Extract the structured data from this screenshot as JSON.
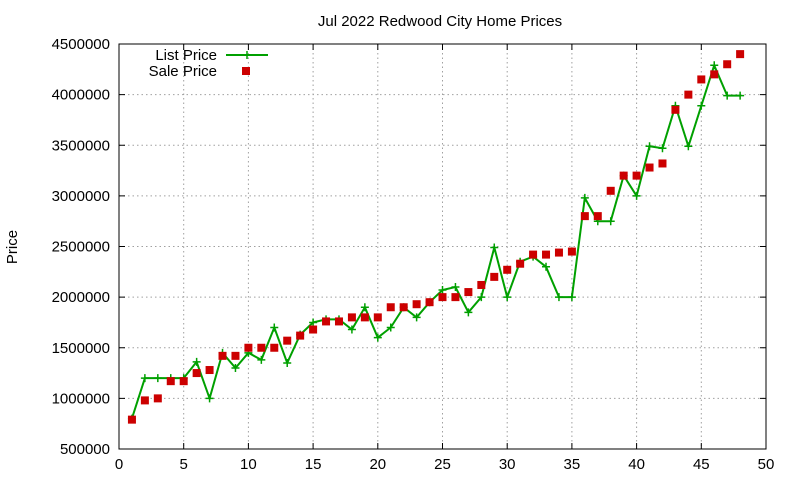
{
  "chart_data": {
    "type": "line",
    "title": "Jul 2022 Redwood City Home Prices",
    "xlabel": "",
    "ylabel": "Price",
    "xlim": [
      0,
      50
    ],
    "ylim": [
      500000,
      4500000
    ],
    "xticks": [
      0,
      5,
      10,
      15,
      20,
      25,
      30,
      35,
      40,
      45,
      50
    ],
    "yticks": [
      500000,
      1000000,
      1500000,
      2000000,
      2500000,
      3000000,
      3500000,
      4000000,
      4500000
    ],
    "grid": true,
    "legend_position": "top-left",
    "colors": {
      "list": "#00a000",
      "sale": "#cc0000"
    },
    "series": [
      {
        "name": "List Price",
        "style": "line-with-plus-markers",
        "x": [
          1,
          2,
          3,
          4,
          5,
          6,
          7,
          8,
          9,
          10,
          11,
          12,
          13,
          14,
          15,
          16,
          17,
          18,
          19,
          20,
          21,
          22,
          23,
          24,
          25,
          26,
          27,
          28,
          29,
          30,
          31,
          32,
          33,
          34,
          35,
          36,
          37,
          38,
          39,
          40,
          41,
          42,
          43,
          44,
          45,
          46,
          47,
          48
        ],
        "y": [
          800000,
          1200000,
          1200000,
          1200000,
          1200000,
          1360000,
          1000000,
          1450000,
          1300000,
          1450000,
          1380000,
          1700000,
          1350000,
          1630000,
          1750000,
          1780000,
          1780000,
          1680000,
          1900000,
          1600000,
          1700000,
          1900000,
          1800000,
          1950000,
          2070000,
          2100000,
          1850000,
          2000000,
          2490000,
          2000000,
          2350000,
          2400000,
          2300000,
          2000000,
          2000000,
          2980000,
          2750000,
          2750000,
          3200000,
          3000000,
          3490000,
          3470000,
          3890000,
          3490000,
          3890000,
          4290000,
          3990000,
          3990000
        ]
      },
      {
        "name": "Sale Price",
        "style": "square-markers",
        "x": [
          1,
          2,
          3,
          4,
          5,
          6,
          7,
          8,
          9,
          10,
          11,
          12,
          13,
          14,
          15,
          16,
          17,
          18,
          19,
          20,
          21,
          22,
          23,
          24,
          25,
          26,
          27,
          28,
          29,
          30,
          31,
          32,
          33,
          34,
          35,
          36,
          37,
          38,
          39,
          40,
          41,
          42,
          43,
          44,
          45,
          46,
          47,
          48
        ],
        "y": [
          790000,
          980000,
          1000000,
          1170000,
          1170000,
          1250000,
          1280000,
          1420000,
          1420000,
          1500000,
          1500000,
          1500000,
          1570000,
          1620000,
          1680000,
          1760000,
          1760000,
          1800000,
          1800000,
          1800000,
          1900000,
          1900000,
          1930000,
          1950000,
          2000000,
          2000000,
          2050000,
          2120000,
          2200000,
          2270000,
          2330000,
          2420000,
          2420000,
          2440000,
          2450000,
          2800000,
          2800000,
          3050000,
          3200000,
          3200000,
          3280000,
          3320000,
          3850000,
          4000000,
          4150000,
          4200000,
          4300000,
          4400000
        ]
      }
    ]
  }
}
